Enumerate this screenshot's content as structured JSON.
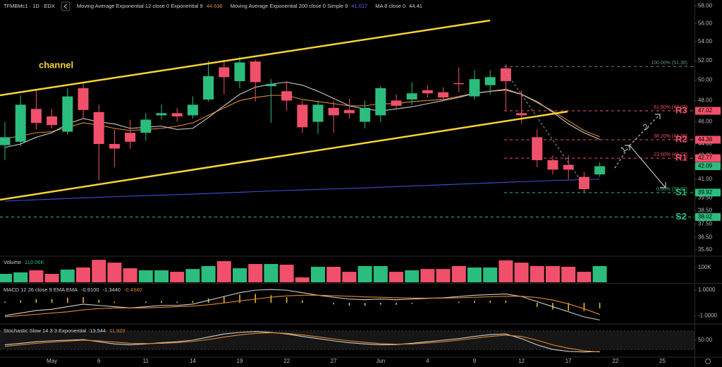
{
  "chart_data": [
    {
      "type": "candlestick",
      "symbol": "TFMBMc1 · 1D · EDX",
      "categories": [
        null,
        null,
        null,
        "May",
        null,
        null,
        "6",
        null,
        null,
        "11",
        null,
        null,
        "14",
        null,
        null,
        "19",
        null,
        null,
        "22",
        null,
        null,
        "27",
        null,
        null,
        "Jun",
        null,
        null,
        "4",
        null,
        null,
        "9",
        null,
        null,
        "12",
        null,
        null,
        "17",
        null,
        null,
        "22",
        null,
        null,
        "25"
      ],
      "open": [
        43.9,
        44.2,
        47.2,
        46.5,
        45.1,
        49.2,
        46.9,
        44.0,
        45.0,
        45.0,
        46.6,
        46.8,
        46.6,
        48.1,
        51.3,
        49.9,
        51.9,
        49.4,
        48.9,
        47.6,
        46.0,
        47.3,
        47.1,
        46.0,
        46.6,
        48.0,
        48.1,
        49.0,
        48.8,
        49.7,
        48.4,
        49.5,
        51.2,
        46.8,
        44.6,
        42.6,
        42.2,
        41.2,
        41.4,
        null,
        null,
        null,
        null
      ],
      "high": [
        46.0,
        48.5,
        49.0,
        47.2,
        49.2,
        49.8,
        47.6,
        45.3,
        46.2,
        46.8,
        47.6,
        47.3,
        48.4,
        52.0,
        52.1,
        52.4,
        52.1,
        50.1,
        49.9,
        48.0,
        48.0,
        48.0,
        48.2,
        48.0,
        49.4,
        48.6,
        49.8,
        49.5,
        49.3,
        51.3,
        51.0,
        51.0,
        51.6,
        49.0,
        45.3,
        43.0,
        43.0,
        41.6,
        42.4,
        null,
        null,
        null,
        null
      ],
      "low": [
        42.6,
        43.8,
        45.3,
        45.4,
        44.8,
        46.3,
        40.9,
        42.0,
        43.6,
        44.3,
        46.2,
        46.0,
        46.3,
        47.9,
        48.6,
        49.2,
        47.9,
        45.9,
        47.0,
        45.0,
        44.9,
        45.0,
        46.3,
        45.4,
        46.0,
        47.2,
        47.6,
        48.3,
        48.0,
        48.8,
        48.1,
        48.6,
        47.0,
        45.8,
        42.0,
        41.4,
        41.0,
        39.9,
        41.2,
        null,
        null,
        null,
        null
      ],
      "close": [
        44.6,
        47.6,
        45.9,
        45.7,
        48.4,
        47.1,
        44.0,
        43.6,
        44.2,
        46.2,
        46.8,
        46.5,
        47.6,
        50.4,
        50.3,
        51.8,
        49.8,
        49.6,
        48.0,
        45.5,
        47.6,
        46.6,
        46.8,
        47.3,
        49.2,
        47.5,
        48.7,
        48.7,
        48.3,
        49.6,
        50.1,
        50.3,
        49.9,
        46.6,
        42.6,
        41.8,
        41.8,
        40.2,
        42.09,
        null,
        null,
        null,
        null
      ],
      "up_color": "#2bbd7e",
      "down_color": "#f0506a",
      "series": [
        {
          "name": "Moving Average Exponential 12 close 0 Exponential 9",
          "color": "#e0892e",
          "values": [
            44.5,
            44.7,
            45.0,
            45.1,
            45.5,
            45.9,
            45.7,
            45.4,
            45.2,
            45.3,
            45.4,
            45.6,
            45.9,
            46.6,
            47.3,
            48.0,
            48.3,
            48.5,
            48.5,
            48.1,
            47.9,
            47.7,
            47.5,
            47.5,
            47.7,
            47.7,
            47.9,
            48.0,
            48.1,
            48.4,
            48.7,
            48.9,
            49.0,
            48.6,
            47.8,
            47.0,
            46.1,
            45.2,
            44.636,
            null,
            null,
            null,
            null
          ]
        },
        {
          "name": "Moving Average Exponential 200 close 0 Simple 9",
          "color": "#3d4fd8",
          "values": [
            39.25,
            39.3,
            39.35,
            39.4,
            39.45,
            39.5,
            39.55,
            39.6,
            39.64,
            39.68,
            39.72,
            39.76,
            39.8,
            39.85,
            39.9,
            39.95,
            40.0,
            40.05,
            40.1,
            40.14,
            40.18,
            40.22,
            40.26,
            40.3,
            40.35,
            40.4,
            40.45,
            40.5,
            40.55,
            40.6,
            40.65,
            40.7,
            40.75,
            40.8,
            40.85,
            40.9,
            40.94,
            40.98,
            41.017,
            null,
            null,
            null,
            null
          ]
        },
        {
          "name": "MA 8 close 0",
          "color": "#c9c9c9",
          "values": [
            43.7,
            44.0,
            44.6,
            45.0,
            45.8,
            46.3,
            46.0,
            45.8,
            45.4,
            45.5,
            45.6,
            45.3,
            45.4,
            46.4,
            47.5,
            48.6,
            49.3,
            49.6,
            49.8,
            49.5,
            48.9,
            48.2,
            47.5,
            47.2,
            47.0,
            47.2,
            47.4,
            47.7,
            48.0,
            48.3,
            48.7,
            48.9,
            49.1,
            48.6,
            47.9,
            46.9,
            45.8,
            45.0,
            44.41,
            null,
            null,
            null,
            null
          ]
        }
      ],
      "levels": [
        {
          "value": 51.38,
          "fib_label": "100.00% (51.38)",
          "color": "#5f8f77"
        },
        {
          "value": 47.02,
          "fib_label": "61.80% (47.02)",
          "name": "R3",
          "color": "#f0506a"
        },
        {
          "value": 44.38,
          "fib_label": "38.20% (44.38)",
          "name": "R2",
          "color": "#f0506a"
        },
        {
          "value": 42.77,
          "fib_label": "23.60% (42.77)",
          "name": "R1",
          "color": "#f0506a"
        },
        {
          "value": 39.92,
          "fib_label": "0.00% (39.92)",
          "name": "S1",
          "color": "#2bbd7e"
        },
        {
          "value": 38.02,
          "name": "S2",
          "color": "#2bbd7e"
        }
      ],
      "annotations": [
        "channel",
        "1",
        "2"
      ],
      "log_scale": true,
      "ylim": [
        35.2,
        58.7
      ],
      "yticks": [
        {
          "value": 58,
          "label": "58.00"
        },
        {
          "value": 56,
          "label": "56.00"
        },
        {
          "value": 54,
          "label": "54.00"
        },
        {
          "value": 52,
          "label": "52.00"
        },
        {
          "value": 50,
          "label": "50.00"
        },
        {
          "value": 48,
          "label": "48.00"
        },
        {
          "value": 46,
          "label": "46.00"
        },
        {
          "value": 44,
          "label": "44.00"
        },
        {
          "value": 43,
          "label": "43.00"
        },
        {
          "value": 41,
          "label": "41.00"
        },
        {
          "value": 39.5,
          "label": "39.50"
        },
        {
          "value": 38.5,
          "label": "38.50"
        },
        {
          "value": 37.5,
          "label": "37.50"
        },
        {
          "value": 36.5,
          "label": "36.50"
        },
        {
          "value": 35.6,
          "label": "35.60"
        }
      ]
    },
    {
      "type": "bar",
      "title": "Volume",
      "legend_value": {
        "value": 110060,
        "label": "110.06K"
      },
      "values": [
        57000,
        67000,
        81000,
        57000,
        86000,
        100000,
        152000,
        133000,
        95000,
        81000,
        81000,
        71000,
        90000,
        110000,
        143000,
        95000,
        124000,
        124000,
        119000,
        33000,
        105000,
        105000,
        71000,
        110000,
        110000,
        71000,
        81000,
        90000,
        90000,
        110000,
        100000,
        100000,
        148000,
        133000,
        110000,
        110000,
        105000,
        71000,
        110060,
        null,
        null,
        null,
        null
      ],
      "ylim": [
        0,
        167000
      ],
      "yticks": [
        {
          "value": 100000,
          "label": "100K"
        }
      ]
    },
    {
      "type": "macd",
      "title": "MACD 12 26 close 9 EMA EMA",
      "legend_values": [
        {
          "value": -0.91,
          "label": "-0.9100"
        },
        {
          "value": -1.344,
          "label": "-1.3440"
        },
        {
          "value": -0.434,
          "label": "-0.4340"
        }
      ],
      "histogram": {
        "color": "#f2c31b",
        "values": [
          0.1,
          0.2,
          0.3,
          0.3,
          0.4,
          0.45,
          0.25,
          0.1,
          0.0,
          0.1,
          0.15,
          0.1,
          0.15,
          0.35,
          0.5,
          0.65,
          0.7,
          0.6,
          0.45,
          0.2,
          0.0,
          -0.12,
          -0.22,
          -0.22,
          -0.14,
          -0.15,
          -0.08,
          -0.02,
          0.02,
          0.1,
          0.16,
          0.17,
          0.18,
          -0.02,
          -0.32,
          -0.52,
          -0.62,
          -0.64,
          -0.434,
          null,
          null,
          null,
          null
        ]
      },
      "series": [
        {
          "color": "#cfcfcf",
          "values": [
            -1.0,
            -0.8,
            -0.6,
            -0.5,
            -0.3,
            -0.1,
            -0.2,
            -0.3,
            -0.4,
            -0.3,
            -0.2,
            -0.2,
            -0.1,
            0.2,
            0.5,
            0.8,
            1.0,
            1.05,
            1.0,
            0.8,
            0.6,
            0.45,
            0.3,
            0.25,
            0.3,
            0.25,
            0.3,
            0.35,
            0.4,
            0.5,
            0.6,
            0.65,
            0.7,
            0.5,
            0.1,
            -0.3,
            -0.7,
            -1.1,
            -1.344,
            null,
            null,
            null,
            null
          ]
        },
        {
          "color": "#e0892e",
          "values": [
            -1.1,
            -1.0,
            -0.9,
            -0.8,
            -0.7,
            -0.55,
            -0.45,
            -0.4,
            -0.4,
            -0.4,
            -0.35,
            -0.3,
            -0.25,
            -0.15,
            0.0,
            0.15,
            0.3,
            0.45,
            0.55,
            0.6,
            0.6,
            0.57,
            0.52,
            0.47,
            0.44,
            0.4,
            0.38,
            0.37,
            0.38,
            0.4,
            0.44,
            0.48,
            0.52,
            0.52,
            0.42,
            0.22,
            -0.08,
            -0.46,
            -0.91,
            null,
            null,
            null,
            null
          ]
        }
      ],
      "ylim": [
        -1.6,
        1.45
      ],
      "yticks": [
        {
          "value": 1,
          "label": "1.0000"
        },
        {
          "value": -1,
          "label": "-1.0000"
        }
      ]
    },
    {
      "type": "stochastic",
      "title": "Stochastic Slow 14 3 3 Exponential",
      "legend_values": [
        {
          "value": 13.544,
          "label": "13.544"
        },
        {
          "value": 11.92,
          "label": "11.920"
        }
      ],
      "band": [
        20,
        80
      ],
      "series": [
        {
          "color": "#cfcfcf",
          "values": [
            35,
            40,
            45,
            48,
            50,
            52,
            45,
            38,
            35,
            38,
            42,
            45,
            50,
            60,
            70,
            75,
            78,
            75,
            70,
            62,
            55,
            48,
            42,
            38,
            35,
            36,
            40,
            45,
            50,
            55,
            62,
            68,
            70,
            55,
            35,
            20,
            14,
            12,
            13.544,
            null,
            null,
            null,
            null
          ]
        },
        {
          "color": "#e0892e",
          "values": [
            30,
            35,
            40,
            44,
            47,
            50,
            48,
            44,
            40,
            39,
            40,
            42,
            46,
            52,
            60,
            67,
            72,
            74,
            72,
            67,
            61,
            54,
            48,
            43,
            39,
            37,
            38,
            41,
            45,
            50,
            56,
            62,
            66,
            62,
            50,
            35,
            24,
            16,
            11.92,
            null,
            null,
            null,
            null
          ]
        }
      ],
      "ylim": [
        0,
        100
      ],
      "yticks": [
        {
          "value": 50,
          "label": "50.00"
        }
      ]
    }
  ]
}
